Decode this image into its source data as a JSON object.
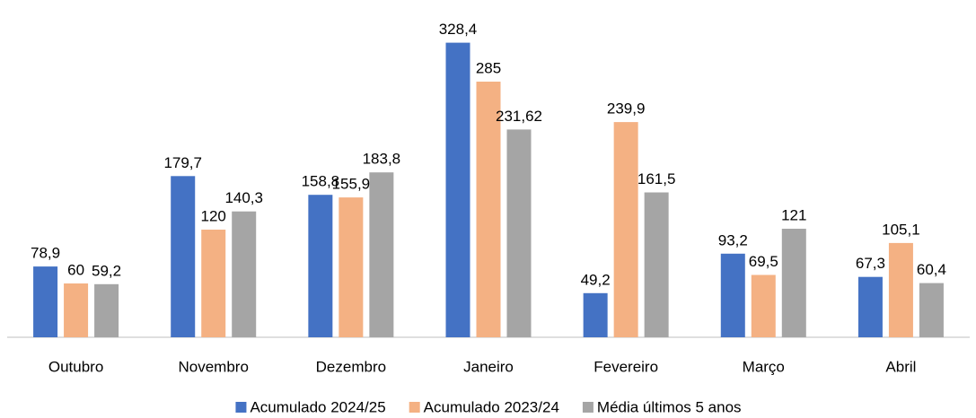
{
  "chart_data": {
    "type": "bar",
    "categories": [
      "Outubro",
      "Novembro",
      "Dezembro",
      "Janeiro",
      "Fevereiro",
      "Março",
      "Abril"
    ],
    "series": [
      {
        "name": "Acumulado 2024/25",
        "color": "#4472c4",
        "values": [
          78.9,
          179.7,
          158.8,
          328.4,
          49.2,
          93.2,
          67.3
        ],
        "value_labels": [
          "78,9",
          "179,7",
          "158,8",
          "328,4",
          "49,2",
          "93,2",
          "67,3"
        ]
      },
      {
        "name": "Acumulado 2023/24",
        "color": "#f4b183",
        "values": [
          60,
          120,
          155.9,
          285,
          239.9,
          69.5,
          105.1
        ],
        "value_labels": [
          "60",
          "120",
          "155,9",
          "285",
          "239,9",
          "69,5",
          "105,1"
        ]
      },
      {
        "name": "Média últimos 5 anos",
        "color": "#a5a5a5",
        "values": [
          59.2,
          140.3,
          183.8,
          231.62,
          161.5,
          121,
          60.4
        ],
        "value_labels": [
          "59,2",
          "140,3",
          "183,8",
          "231,62",
          "161,5",
          "121",
          "60,4"
        ]
      }
    ],
    "ylim": [
      0,
      360
    ],
    "legend": "bottom"
  }
}
